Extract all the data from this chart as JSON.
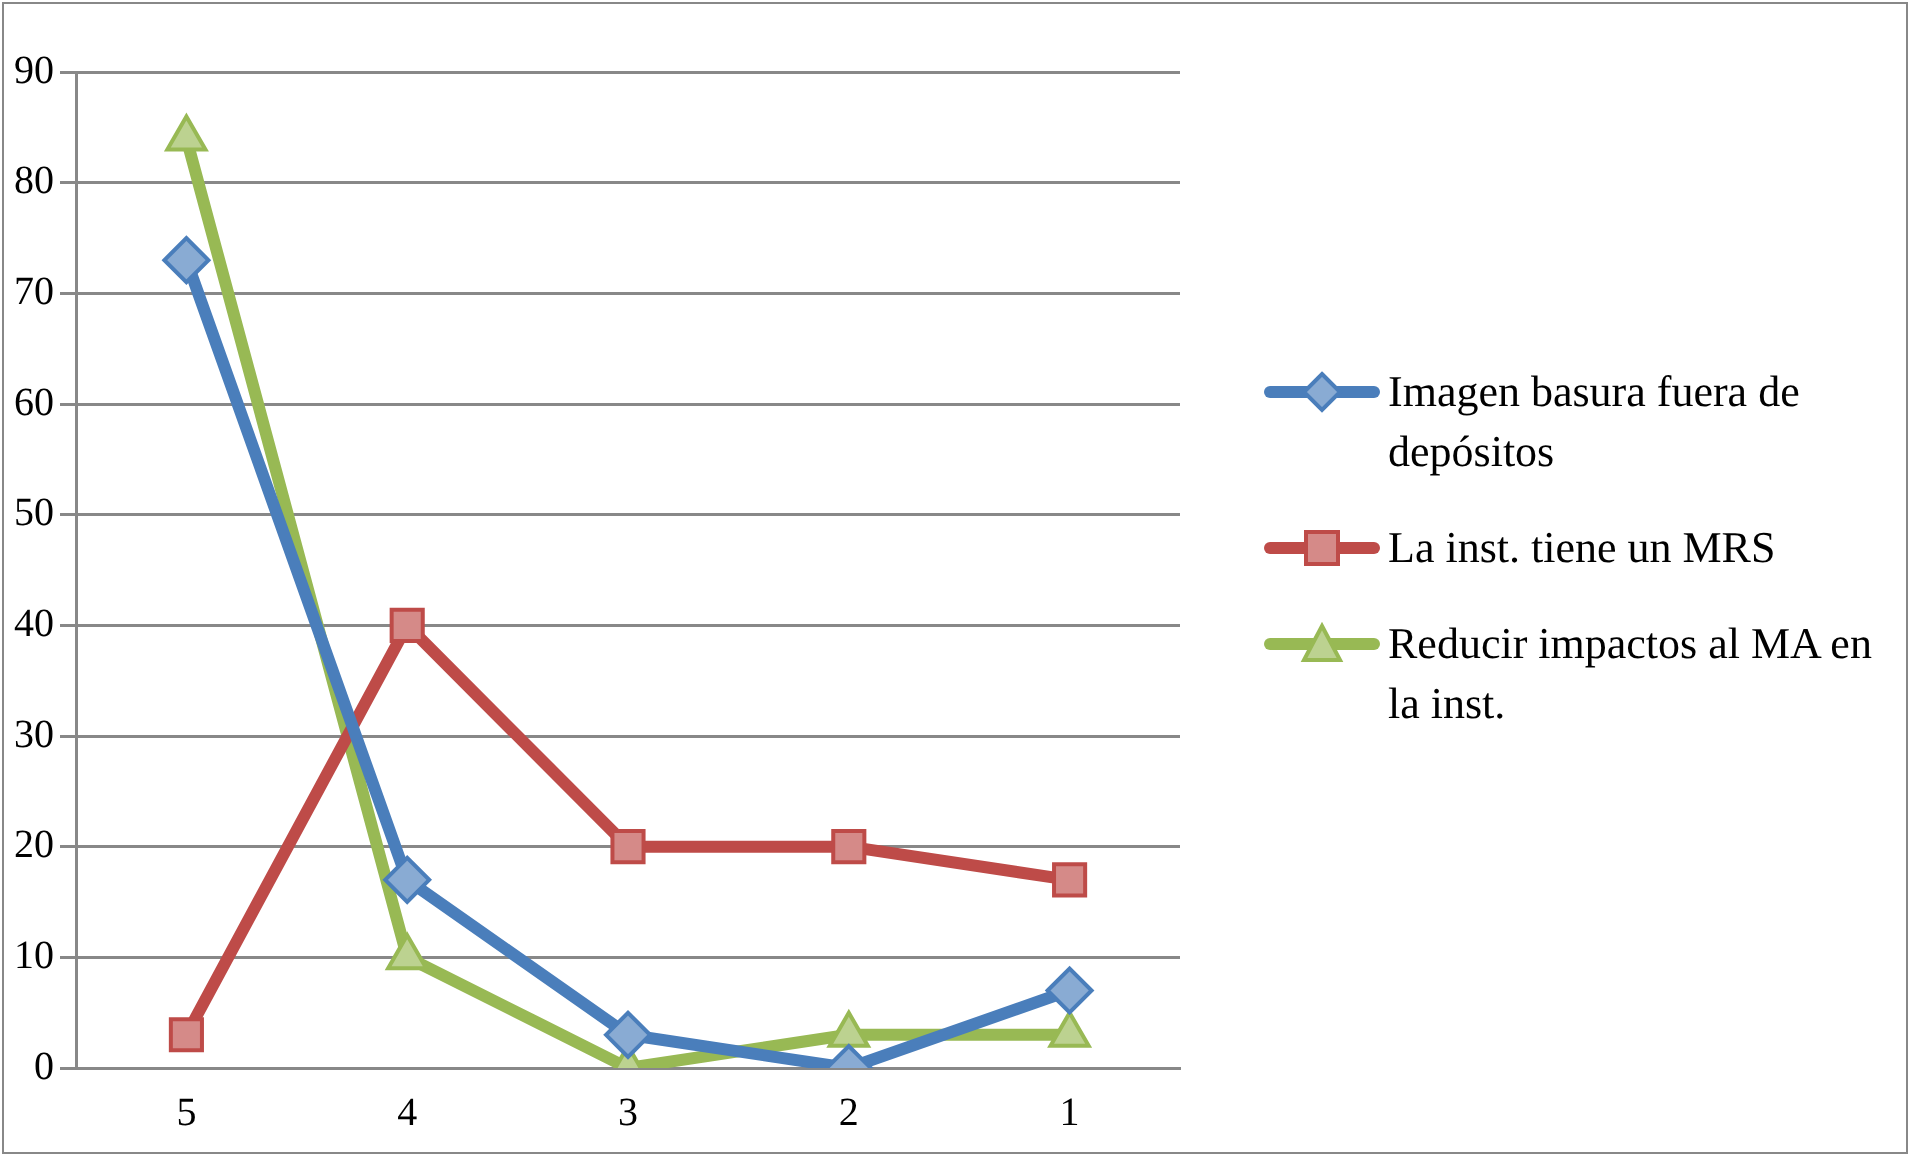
{
  "chart_data": {
    "type": "line",
    "categories": [
      "5",
      "4",
      "3",
      "2",
      "1"
    ],
    "series": [
      {
        "name": "Imagen basura fuera de depósitos",
        "color": "#4a7ebb",
        "values": [
          73,
          17,
          3,
          0,
          7
        ],
        "marker": "diamond"
      },
      {
        "name": "La inst. tiene un MRS",
        "color": "#be4b48",
        "values": [
          3,
          40,
          20,
          20,
          17
        ],
        "marker": "square"
      },
      {
        "name": "Reducir impactos al MA en la inst.",
        "color": "#98b954",
        "values": [
          84,
          10,
          0,
          3,
          3
        ],
        "marker": "triangle"
      }
    ],
    "ylim": [
      0,
      90
    ],
    "yticks": [
      0,
      10,
      20,
      30,
      40,
      50,
      60,
      70,
      80,
      90
    ],
    "grid": "y",
    "legend": "right"
  }
}
